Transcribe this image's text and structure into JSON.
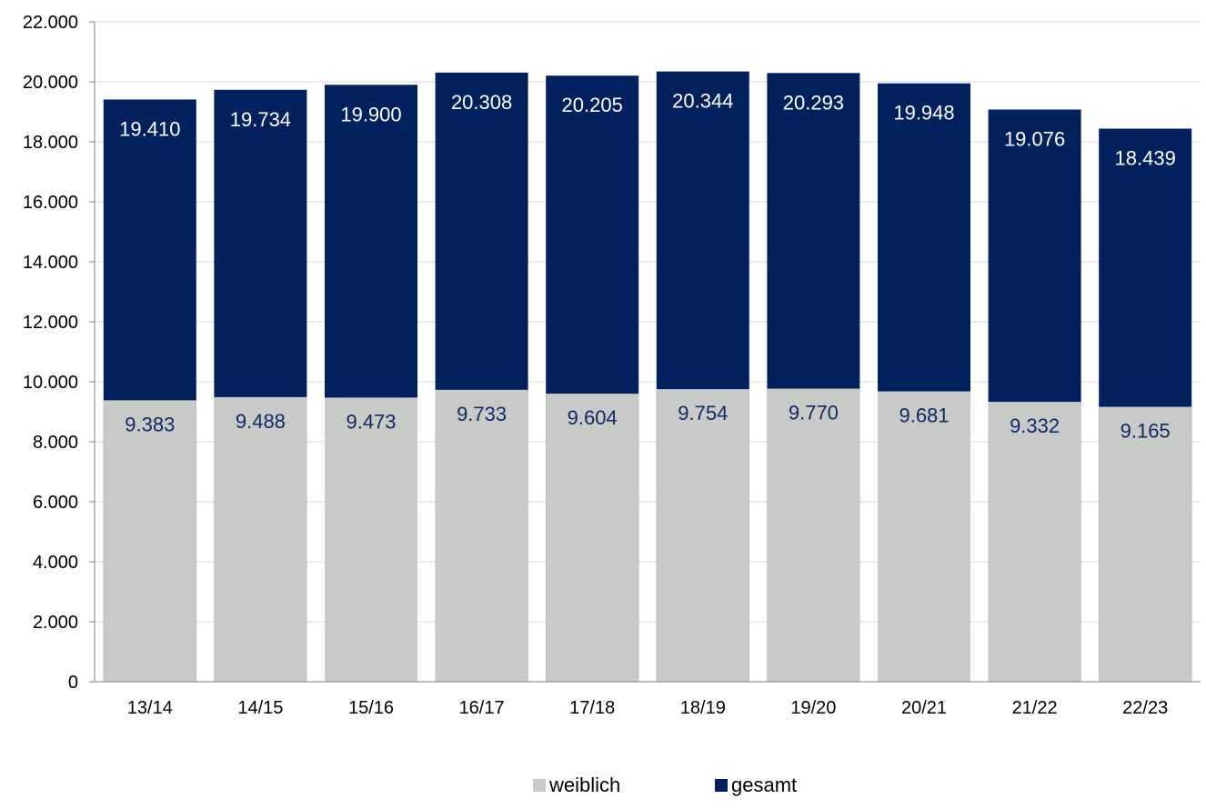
{
  "chart_data": {
    "type": "bar",
    "stacking": "overlay",
    "categories": [
      "13/14",
      "14/15",
      "15/16",
      "16/17",
      "17/18",
      "18/19",
      "19/20",
      "20/21",
      "21/22",
      "22/23"
    ],
    "series": [
      {
        "name": "weiblich",
        "color": "#c8cac8",
        "label_color": "#0e2a63",
        "values": [
          9383,
          9488,
          9473,
          9733,
          9604,
          9754,
          9770,
          9681,
          9332,
          9165
        ],
        "labels": [
          "9.383",
          "9.488",
          "9.473",
          "9.733",
          "9.604",
          "9.754",
          "9.770",
          "9.681",
          "9.332",
          "9.165"
        ]
      },
      {
        "name": "gesamt",
        "color": "#00215e",
        "label_color": "#ffffff",
        "values": [
          19410,
          19734,
          19900,
          20308,
          20205,
          20344,
          20293,
          19948,
          19076,
          18439
        ],
        "labels": [
          "19.410",
          "19.734",
          "19.900",
          "20.308",
          "20.205",
          "20.344",
          "20.293",
          "19.948",
          "19.076",
          "18.439"
        ]
      }
    ],
    "ylim": [
      0,
      22000
    ],
    "yticks": [
      0,
      2000,
      4000,
      6000,
      8000,
      10000,
      12000,
      14000,
      16000,
      18000,
      20000,
      22000
    ],
    "ytick_labels": [
      "0",
      "2.000",
      "4.000",
      "6.000",
      "8.000",
      "10.000",
      "12.000",
      "14.000",
      "16.000",
      "18.000",
      "20.000",
      "22.000"
    ],
    "grid": true,
    "legend_position": "bottom-center",
    "title": "",
    "xlabel": "",
    "ylabel": ""
  }
}
